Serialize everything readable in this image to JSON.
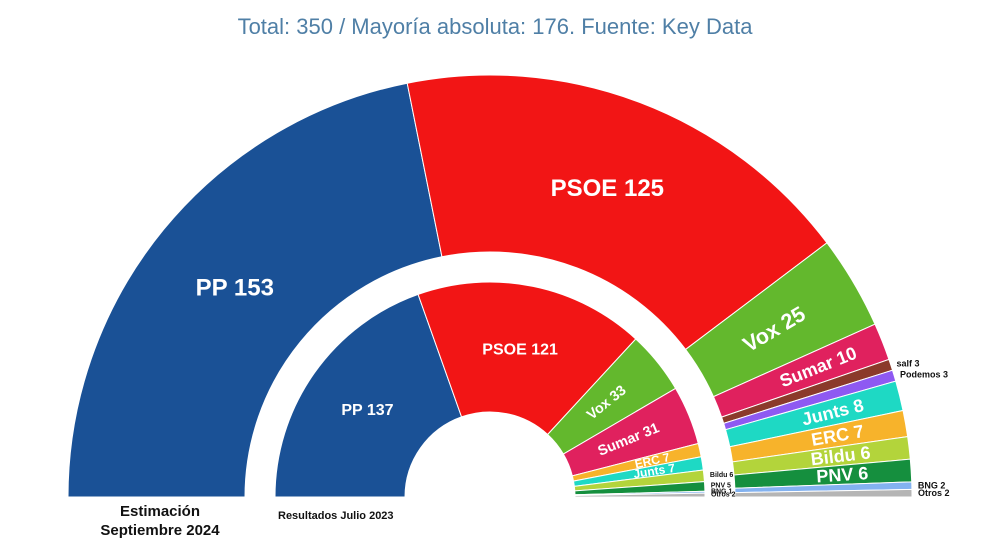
{
  "subtitle": "Total: 350 / Mayoría absoluta: 176. Fuente: Key Data",
  "captions": {
    "outer_line1": "Estimación",
    "outer_line2": "Septiembre 2024",
    "inner": "Resultados Julio 2023"
  },
  "chart_data": [
    {
      "type": "pie",
      "name": "Estimación Septiembre 2024",
      "total": 350,
      "labels": [
        "PP",
        "PSOE",
        "Vox",
        "Sumar",
        "salf",
        "Podemos",
        "Junts",
        "ERC",
        "Bildu",
        "PNV",
        "BNG",
        "Otros"
      ],
      "values": [
        153,
        125,
        25,
        10,
        3,
        3,
        8,
        7,
        6,
        6,
        2,
        2
      ],
      "colors": [
        "#1a5196",
        "#f21515",
        "#63b82d",
        "#e0215e",
        "#8b3a2b",
        "#8e59f2",
        "#1ed9c4",
        "#f7b32b",
        "#b3d43b",
        "#158f3e",
        "#83b2f0",
        "#b5b5b5"
      ]
    },
    {
      "type": "pie",
      "name": "Resultados Julio 2023",
      "total": 350,
      "labels": [
        "PP",
        "PSOE",
        "Vox",
        "Sumar",
        "ERC",
        "Junts",
        "Bildu",
        "PNV",
        "BNG",
        "Otros"
      ],
      "values": [
        137,
        121,
        33,
        31,
        7,
        7,
        6,
        5,
        1,
        2
      ],
      "colors": [
        "#1a5196",
        "#f21515",
        "#63b82d",
        "#e0215e",
        "#f7b32b",
        "#1ed9c4",
        "#b3d43b",
        "#158f3e",
        "#83b2f0",
        "#b5b5b5"
      ]
    }
  ]
}
